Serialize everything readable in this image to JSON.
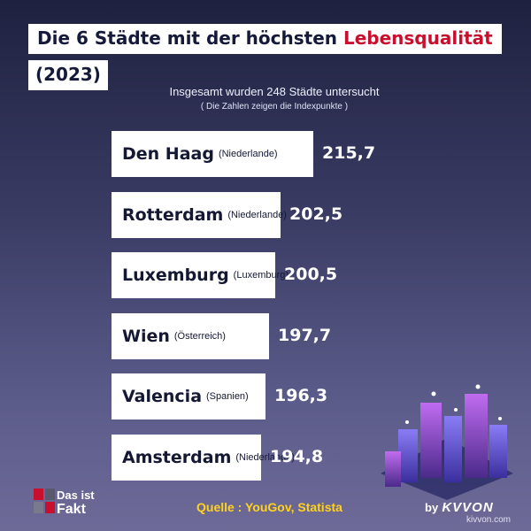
{
  "title": {
    "prefix": "Die 6 Städte mit der höchsten ",
    "highlight": "Lebensqualität",
    "year": "(2023)"
  },
  "subtitle": "Insgesamt wurden 248 Städte untersucht",
  "note": "( Die Zahlen zeigen die Indexpunkte )",
  "chart_data": {
    "type": "bar",
    "orientation": "horizontal",
    "categories": [
      "Den Haag",
      "Rotterdam",
      "Luxemburg",
      "Wien",
      "Valencia",
      "Amsterdam"
    ],
    "countries": [
      "(Niederlande)",
      "(Niederlande)",
      "(Luxemburg)",
      "(Österreich)",
      "(Spanien)",
      "(Niederlande)"
    ],
    "values": [
      215.7,
      202.5,
      200.5,
      197.7,
      196.3,
      194.8
    ],
    "value_labels": [
      "215,7",
      "202,5",
      "200,5",
      "197,7",
      "196,3",
      "194,8"
    ],
    "colors": {
      "bar": "#ffffff",
      "accent": "#c8102e",
      "source": "#ffd21f"
    }
  },
  "source": "Quelle : YouGov, Statista",
  "logo": {
    "line1": "Das ist",
    "line2": "Fakt"
  },
  "brand": {
    "by": "by",
    "name": "KVVON"
  },
  "watermark": "kivvon.com"
}
